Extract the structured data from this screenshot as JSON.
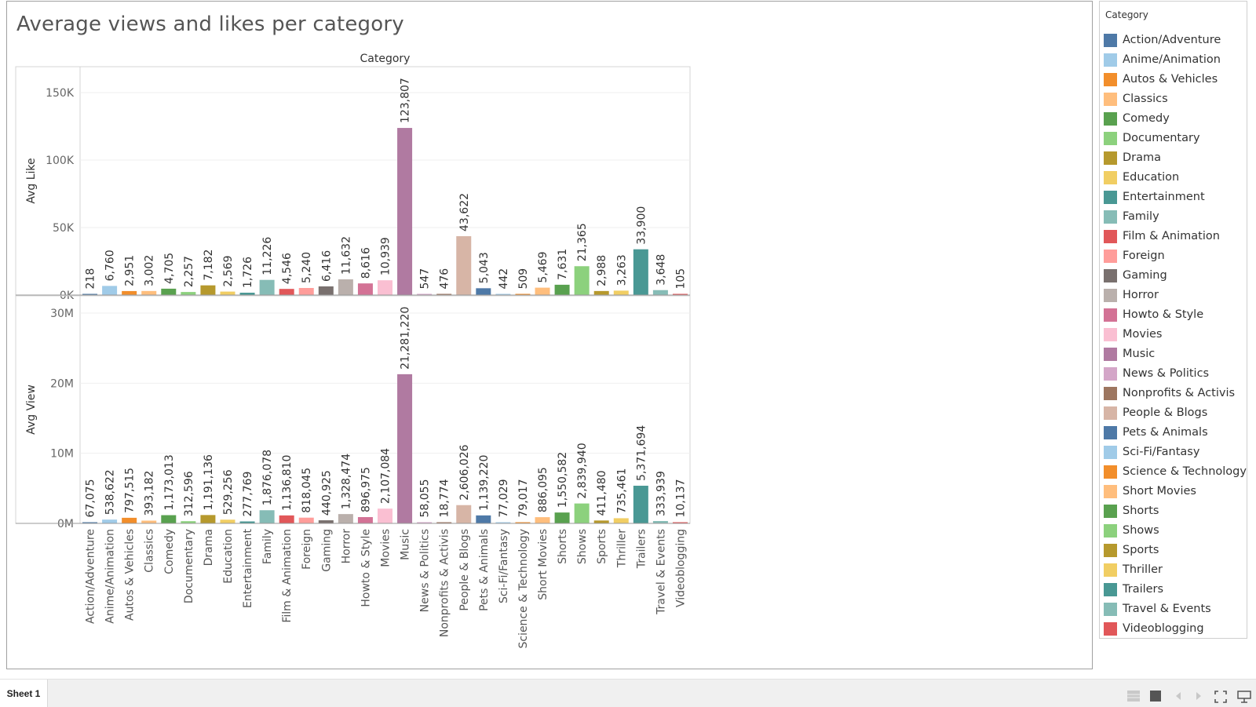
{
  "title": "Average views and likes per category",
  "legend": {
    "title": "Category",
    "items": [
      {
        "label": "Action/Adventure",
        "color": "#4e79a7"
      },
      {
        "label": "Anime/Animation",
        "color": "#a0cbe8"
      },
      {
        "label": "Autos & Vehicles",
        "color": "#f28e2b"
      },
      {
        "label": "Classics",
        "color": "#ffbe7d"
      },
      {
        "label": "Comedy",
        "color": "#59a14f"
      },
      {
        "label": "Documentary",
        "color": "#8cd17d"
      },
      {
        "label": "Drama",
        "color": "#b6992d"
      },
      {
        "label": "Education",
        "color": "#f1ce63"
      },
      {
        "label": "Entertainment",
        "color": "#499894"
      },
      {
        "label": "Family",
        "color": "#86bcb6"
      },
      {
        "label": "Film & Animation",
        "color": "#e15759"
      },
      {
        "label": "Foreign",
        "color": "#ff9d9a"
      },
      {
        "label": "Gaming",
        "color": "#79706e"
      },
      {
        "label": "Horror",
        "color": "#bab0ac"
      },
      {
        "label": "Howto & Style",
        "color": "#d37295"
      },
      {
        "label": "Movies",
        "color": "#fabfd2"
      },
      {
        "label": "Music",
        "color": "#b07aa1"
      },
      {
        "label": "News & Politics",
        "color": "#d4a6c8"
      },
      {
        "label": "Nonprofits & Activis",
        "color": "#9d7660"
      },
      {
        "label": "People & Blogs",
        "color": "#d7b5a6"
      },
      {
        "label": "Pets & Animals",
        "color": "#4e79a7"
      },
      {
        "label": "Sci-Fi/Fantasy",
        "color": "#a0cbe8"
      },
      {
        "label": "Science & Technology",
        "color": "#f28e2b"
      },
      {
        "label": "Short Movies",
        "color": "#ffbe7d"
      },
      {
        "label": "Shorts",
        "color": "#59a14f"
      },
      {
        "label": "Shows",
        "color": "#8cd17d"
      },
      {
        "label": "Sports",
        "color": "#b6992d"
      },
      {
        "label": "Thriller",
        "color": "#f1ce63"
      },
      {
        "label": "Trailers",
        "color": "#499894"
      },
      {
        "label": "Travel & Events",
        "color": "#86bcb6"
      },
      {
        "label": "Videoblogging",
        "color": "#e15759"
      }
    ]
  },
  "chart_data": {
    "type": "bar",
    "xlabel": "Category",
    "categories": [
      "Action/Adventure",
      "Anime/Animation",
      "Autos & Vehicles",
      "Classics",
      "Comedy",
      "Documentary",
      "Drama",
      "Education",
      "Entertainment",
      "Family",
      "Film & Animation",
      "Foreign",
      "Gaming",
      "Horror",
      "Howto & Style",
      "Movies",
      "Music",
      "News & Politics",
      "Nonprofits & Activis",
      "People & Blogs",
      "Pets & Animals",
      "Sci-Fi/Fantasy",
      "Science & Technology",
      "Short Movies",
      "Shorts",
      "Shows",
      "Sports",
      "Thriller",
      "Trailers",
      "Travel & Events",
      "Videoblogging"
    ],
    "panels": [
      {
        "ylabel": "Avg Like",
        "ylim": [
          0,
          150000
        ],
        "ticks": [
          0,
          50000,
          100000,
          150000
        ],
        "tick_labels": [
          "0K",
          "50K",
          "100K",
          "150K"
        ],
        "values": [
          218,
          6760,
          2951,
          3002,
          4705,
          2257,
          7182,
          2569,
          1726,
          11226,
          4546,
          5240,
          6416,
          11632,
          8616,
          10939,
          123807,
          547,
          476,
          43622,
          5043,
          442,
          509,
          5469,
          7631,
          21365,
          2988,
          3263,
          33900,
          3648,
          105
        ],
        "labels": [
          "218",
          "6,760",
          "2,951",
          "3,002",
          "4,705",
          "2,257",
          "7,182",
          "2,569",
          "1,726",
          "11,226",
          "4,546",
          "5,240",
          "6,416",
          "11,632",
          "8,616",
          "10,939",
          "123,807",
          "547",
          "476",
          "43,622",
          "5,043",
          "442",
          "509",
          "5,469",
          "7,631",
          "21,365",
          "2,988",
          "3,263",
          "33,900",
          "3,648",
          "105"
        ]
      },
      {
        "ylabel": "Avg View",
        "ylim": [
          0,
          30000000
        ],
        "ticks": [
          0,
          10000000,
          20000000,
          30000000
        ],
        "tick_labels": [
          "0M",
          "10M",
          "20M",
          "30M"
        ],
        "values": [
          67075,
          538622,
          797515,
          393182,
          1173013,
          312596,
          1191136,
          529256,
          277769,
          1876078,
          1136810,
          818045,
          440925,
          1328474,
          896975,
          2107084,
          21281220,
          58055,
          18774,
          2606026,
          1139220,
          77029,
          79017,
          886095,
          1550582,
          2839940,
          411480,
          735461,
          5371694,
          333939,
          10137
        ],
        "labels": [
          "67,075",
          "538,622",
          "797,515",
          "393,182",
          "1,173,013",
          "312,596",
          "1,191,136",
          "529,256",
          "277,769",
          "1,876,078",
          "1,136,810",
          "818,045",
          "440,925",
          "1,328,474",
          "896,975",
          "2,107,084",
          "21,281,220",
          "58,055",
          "18,774",
          "2,606,026",
          "1,139,220",
          "77,029",
          "79,017",
          "886,095",
          "1,550,582",
          "2,839,940",
          "411,480",
          "735,461",
          "5,371,694",
          "333,939",
          "10,137"
        ]
      }
    ],
    "legend_position": "right",
    "grid": true
  },
  "tabs": {
    "sheet1": "Sheet 1"
  },
  "toolbar": {
    "icons": [
      "grid-view-icon",
      "square-icon",
      "prev-icon",
      "next-icon",
      "fullscreen-icon",
      "present-icon"
    ]
  }
}
